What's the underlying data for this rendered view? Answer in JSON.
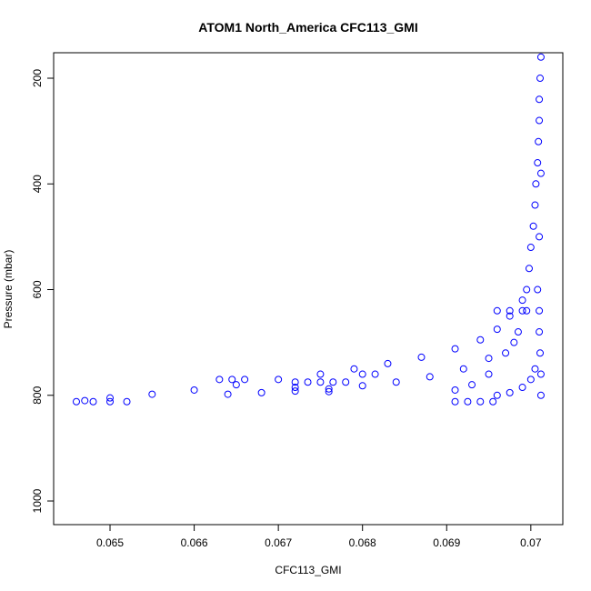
{
  "chart_data": {
    "type": "scatter",
    "title": "ATOM1 North_America CFC113_GMI",
    "x_label": "CFC113_GMI",
    "y_label": "Pressure (mbar)",
    "color": "#0000ff",
    "xlim": [
      0.06433,
      0.07038
    ],
    "ylim": [
      1044.7,
      151.8
    ],
    "xticks": [
      0.065,
      0.066,
      0.067,
      0.068,
      0.069,
      0.07
    ],
    "yticks": [
      200,
      400,
      600,
      800,
      1000
    ],
    "x": [
      0.07012,
      0.07011,
      0.0701,
      0.0701,
      0.07009,
      0.07008,
      0.07006,
      0.07005,
      0.07003,
      0.07,
      0.06998,
      0.06995,
      0.0701,
      0.0701,
      0.07011,
      0.07012,
      0.07012,
      0.07008,
      0.0701,
      0.07012,
      0.0699,
      0.06975,
      0.0696,
      0.0694,
      0.0691,
      0.0687,
      0.0683,
      0.0679,
      0.0675,
      0.067,
      0.0665,
      0.066,
      0.0655,
      0.065,
      0.0647,
      0.0698,
      0.0695,
      0.0692,
      0.0688,
      0.0684,
      0.068,
      0.0676,
      0.0672,
      0.0668,
      0.0664,
      0.06995,
      0.06985,
      0.0697,
      0.0695,
      0.0693,
      0.0691,
      0.0646,
      0.0648,
      0.065,
      0.0652,
      0.0691,
      0.06925,
      0.0694,
      0.06955,
      0.0696,
      0.06975,
      0.0699,
      0.07,
      0.07005,
      0.0663,
      0.06645,
      0.0666,
      0.0672,
      0.06735,
      0.0675,
      0.06765,
      0.0678,
      0.068,
      0.06815,
      0.0672,
      0.0676,
      0.0696,
      0.06975,
      0.0699
    ],
    "y": [
      160,
      200,
      240,
      280,
      320,
      360,
      400,
      440,
      480,
      520,
      560,
      600,
      640,
      680,
      720,
      760,
      800,
      600,
      500,
      380,
      620,
      650,
      675,
      695,
      712,
      728,
      740,
      750,
      760,
      770,
      780,
      790,
      798,
      805,
      810,
      700,
      730,
      750,
      765,
      775,
      782,
      788,
      792,
      795,
      798,
      640,
      680,
      720,
      760,
      780,
      790,
      812,
      812,
      812,
      812,
      812,
      812,
      812,
      812,
      800,
      795,
      785,
      770,
      750,
      770,
      770,
      770,
      775,
      775,
      775,
      775,
      775,
      760,
      760,
      785,
      793,
      640,
      640,
      640
    ]
  }
}
